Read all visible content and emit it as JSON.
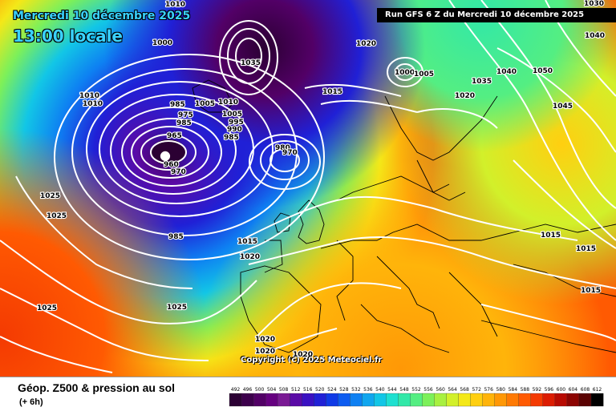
{
  "header": {
    "date_line": "Mercredi 10 décembre 2025",
    "local_time": "13:00 locale",
    "run_info": "Run GFS 6 Z du Mercredi 10 décembre 2025",
    "copyright": "Copyright (c) 2025 Meteociel.fr"
  },
  "footer": {
    "product_title": "Géop. Z500 & pression au sol",
    "step": "(+ 6h)"
  },
  "legend": {
    "levels": [
      492,
      496,
      500,
      504,
      508,
      512,
      516,
      520,
      524,
      528,
      532,
      536,
      540,
      544,
      548,
      552,
      556,
      560,
      564,
      568,
      572,
      576,
      580,
      584,
      588,
      592,
      596,
      600,
      604,
      608,
      612
    ],
    "colors": [
      "#2b0033",
      "#3d004c",
      "#520066",
      "#660080",
      "#7a1a94",
      "#5a0aa6",
      "#3a10c2",
      "#2020d6",
      "#0f3ae6",
      "#0d5cf0",
      "#0e80f2",
      "#10a6ee",
      "#12c6e6",
      "#1ee0d0",
      "#32e8a8",
      "#54ee82",
      "#7cf05a",
      "#a8f040",
      "#d2f02a",
      "#f4e818",
      "#ffcf10",
      "#ffb40a",
      "#ff9806",
      "#ff7a04",
      "#ff5a02",
      "#f43a02",
      "#dc1c02",
      "#b80a02",
      "#8c0402",
      "#5a0202",
      "#000000"
    ]
  },
  "map": {
    "pressure_labels": [
      "1000",
      "1010",
      "1010",
      "1010",
      "1020",
      "1035",
      "1005",
      "1015",
      "1000",
      "1005",
      "1020",
      "1030",
      "1040",
      "1050",
      "1045",
      "1035",
      "1040",
      "985",
      "975",
      "985",
      "1005",
      "1010",
      "995",
      "990",
      "985",
      "965",
      "960",
      "970",
      "980",
      "970",
      "1025",
      "1025",
      "985",
      "1015",
      "1020",
      "1015",
      "1015",
      "1015",
      "1025",
      "1025",
      "1020",
      "1020",
      "1020"
    ]
  }
}
